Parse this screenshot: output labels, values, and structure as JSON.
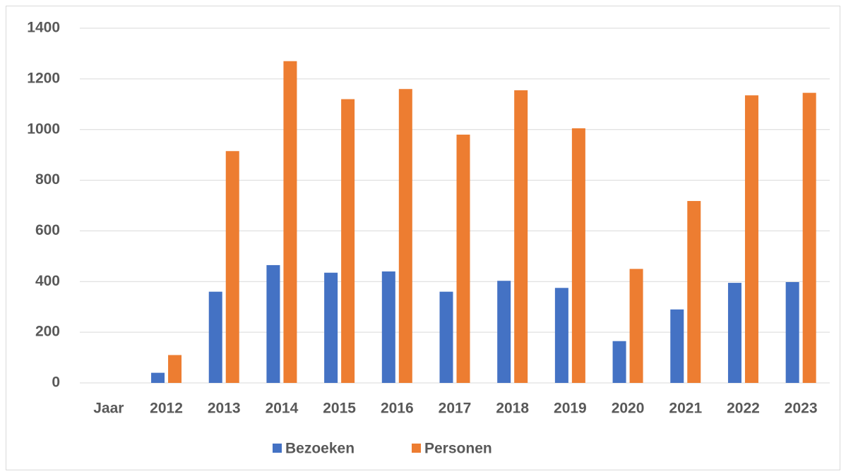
{
  "chart_data": {
    "type": "bar",
    "categories": [
      "Jaar",
      "2012",
      "2013",
      "2014",
      "2015",
      "2016",
      "2017",
      "2018",
      "2019",
      "2020",
      "2021",
      "2022",
      "2023"
    ],
    "series": [
      {
        "name": "Bezoeken",
        "color": "#4472c4",
        "values": [
          null,
          40,
          360,
          465,
          435,
          440,
          360,
          403,
          375,
          165,
          290,
          395,
          398
        ]
      },
      {
        "name": "Personen",
        "color": "#ed7d31",
        "values": [
          null,
          110,
          915,
          1270,
          1120,
          1160,
          980,
          1155,
          1005,
          450,
          718,
          1135,
          1145
        ]
      }
    ],
    "ylim": [
      0,
      1400
    ],
    "yticks": [
      0,
      200,
      400,
      600,
      800,
      1000,
      1200,
      1400
    ],
    "grid": true,
    "legend": "bottom"
  }
}
